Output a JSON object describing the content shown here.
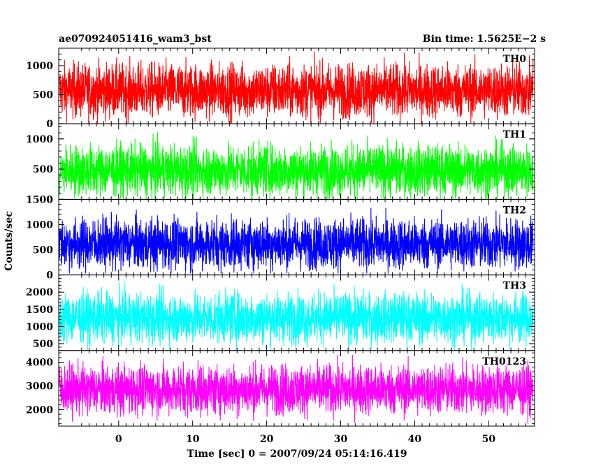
{
  "header": {
    "title": "ae070924051416_wam3_bst",
    "bin_time": "Bin time: 1.5625E−2 s"
  },
  "chart_data": {
    "type": "line",
    "xlabel": "Time [sec] 0 = 2007/09/24 05:14:16.419",
    "ylabel": "Counts/sec",
    "xlim": [
      -8.1,
      56.2
    ],
    "xticks": [
      0,
      10,
      20,
      30,
      40,
      50
    ],
    "data_range": [
      -8.0,
      56.0
    ],
    "bin_time_s": 0.015625,
    "panels": [
      {
        "name": "TH0",
        "color": "#ff0000",
        "ylim": [
          0,
          1300
        ],
        "yticks": [
          0,
          500,
          1000
        ],
        "mean": 570,
        "spread": 230,
        "max": 1300,
        "min": 10
      },
      {
        "name": "TH1",
        "color": "#00ff00",
        "ylim": [
          0,
          1250
        ],
        "yticks": [
          0,
          500,
          1000
        ],
        "mean": 480,
        "spread": 210,
        "max": 1250,
        "min": 10
      },
      {
        "name": "TH2",
        "color": "#0000ff",
        "ylim": [
          0,
          1500
        ],
        "yticks": [
          0,
          500,
          1000,
          1500
        ],
        "mean": 620,
        "spread": 250,
        "max": 1500,
        "min": 30
      },
      {
        "name": "TH3",
        "color": "#00ffff",
        "ylim": [
          300,
          2500
        ],
        "yticks": [
          500,
          1000,
          1500,
          2000
        ],
        "mean": 1250,
        "spread": 360,
        "max": 2500,
        "min": 300
      },
      {
        "name": "TH0123",
        "color": "#ff00ff",
        "ylim": [
          1300,
          4500
        ],
        "yticks": [
          2000,
          3000,
          4000
        ],
        "mean": 2850,
        "spread": 520,
        "max": 4500,
        "min": 1400
      }
    ]
  }
}
